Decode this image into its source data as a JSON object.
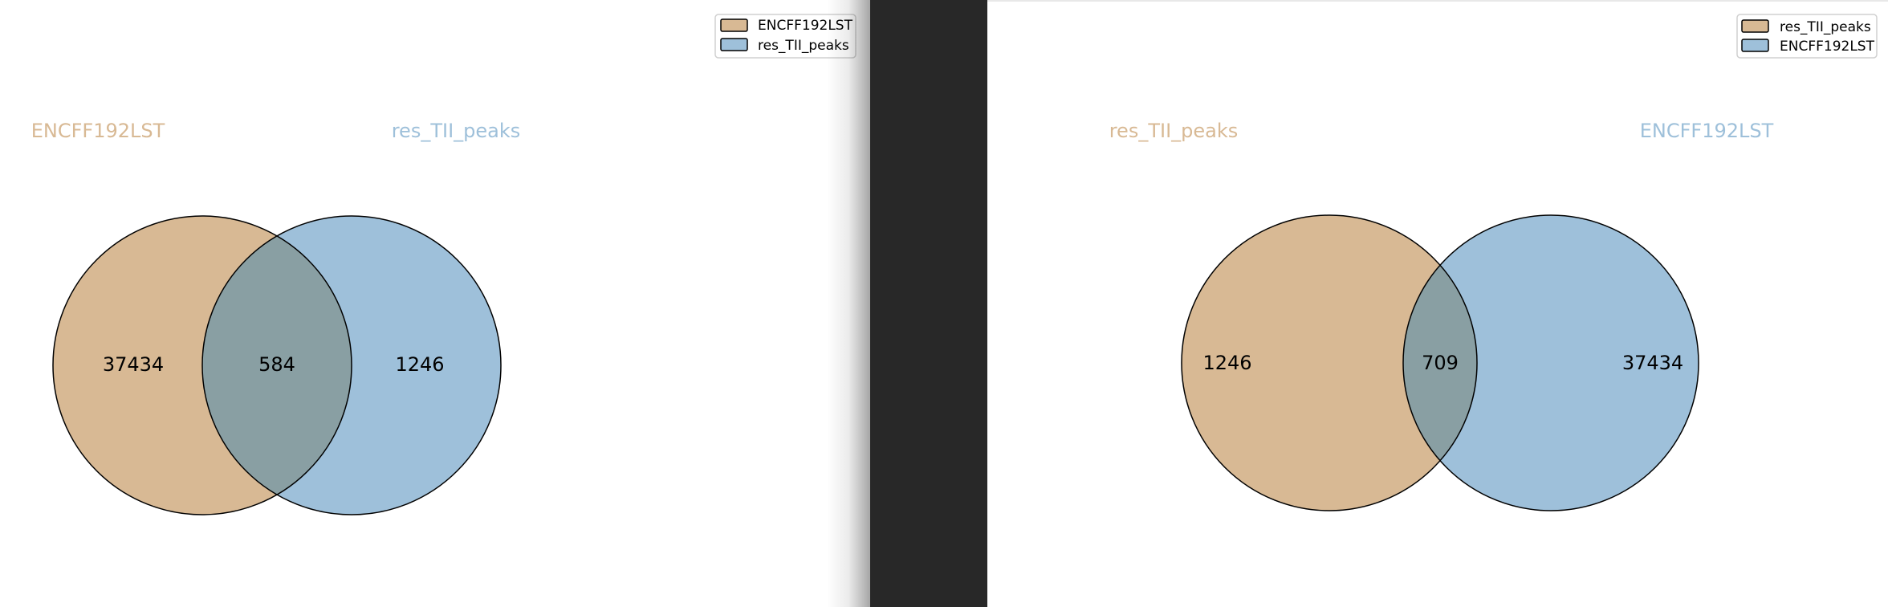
{
  "colors": {
    "set_a": "#d8b994",
    "set_b": "#9ec0da",
    "overlap": "#899fa3",
    "outline": "#000000",
    "separator": "#282828"
  },
  "left": {
    "legend": {
      "items": [
        {
          "label": "ENCFF192LST",
          "color": "#d8b994"
        },
        {
          "label": "res_TII_peaks",
          "color": "#9ec0da"
        }
      ]
    },
    "set_labels": {
      "a": "ENCFF192LST",
      "b": "res_TII_peaks"
    },
    "set_label_colors": {
      "a": "#d8b994",
      "b": "#9ec0da"
    },
    "counts": {
      "only_a": "37434",
      "both": "584",
      "only_b": "1246"
    }
  },
  "right": {
    "legend": {
      "items": [
        {
          "label": "res_TII_peaks",
          "color": "#d8b994"
        },
        {
          "label": "ENCFF192LST",
          "color": "#9ec0da"
        }
      ]
    },
    "set_labels": {
      "a": "res_TII_peaks",
      "b": "ENCFF192LST"
    },
    "set_label_colors": {
      "a": "#d8b994",
      "b": "#9ec0da"
    },
    "counts": {
      "only_a": "1246",
      "both": "709",
      "only_b": "37434"
    }
  }
}
